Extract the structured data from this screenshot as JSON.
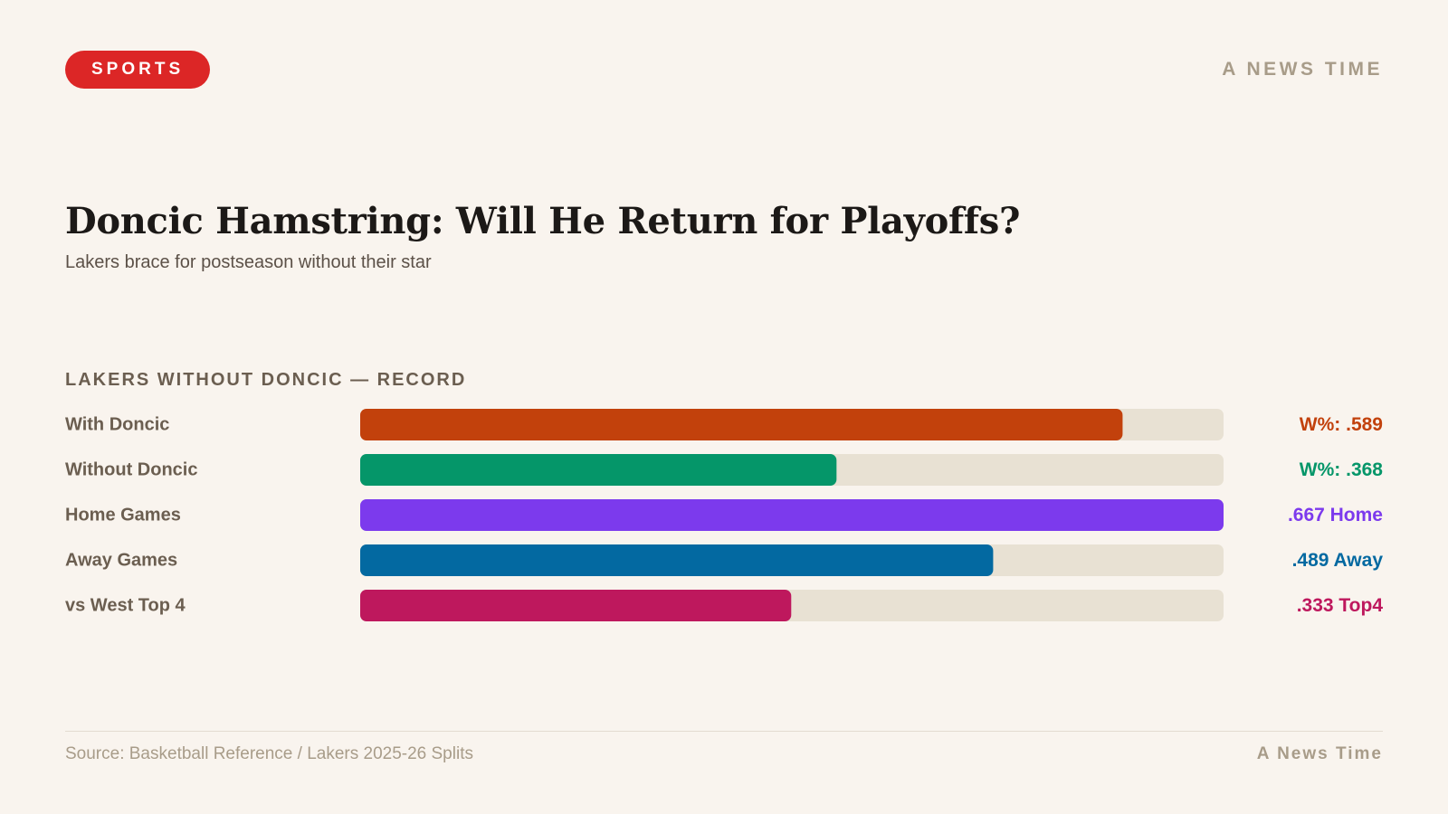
{
  "header": {
    "badge": "SPORTS",
    "brand": "A NEWS TIME"
  },
  "headline": {
    "title": "Doncic Hamstring: Will He Return for Playoffs?",
    "subtitle": "Lakers brace for postseason without their star"
  },
  "chart_data": {
    "type": "bar",
    "orientation": "horizontal",
    "title": "LAKERS WITHOUT DONCIC — RECORD",
    "categories": [
      "With Doncic",
      "Without Doncic",
      "Home Games",
      "Away Games",
      "vs West Top 4"
    ],
    "values": [
      0.589,
      0.368,
      0.667,
      0.489,
      0.333
    ],
    "value_labels": [
      "W%: .589",
      "W%: .368",
      ".667 Home",
      ".489 Away",
      ".333 Top4"
    ],
    "colors": [
      "#c2410c",
      "#059669",
      "#7c3aed",
      "#0369a1",
      "#be185d"
    ],
    "track_color": "#e8e1d3",
    "xlim": [
      0,
      0.667
    ],
    "grid": false,
    "legend": "none"
  },
  "footer": {
    "source": "Source: Basketball Reference / Lakers 2025-26 Splits",
    "brand": "A News Time"
  }
}
